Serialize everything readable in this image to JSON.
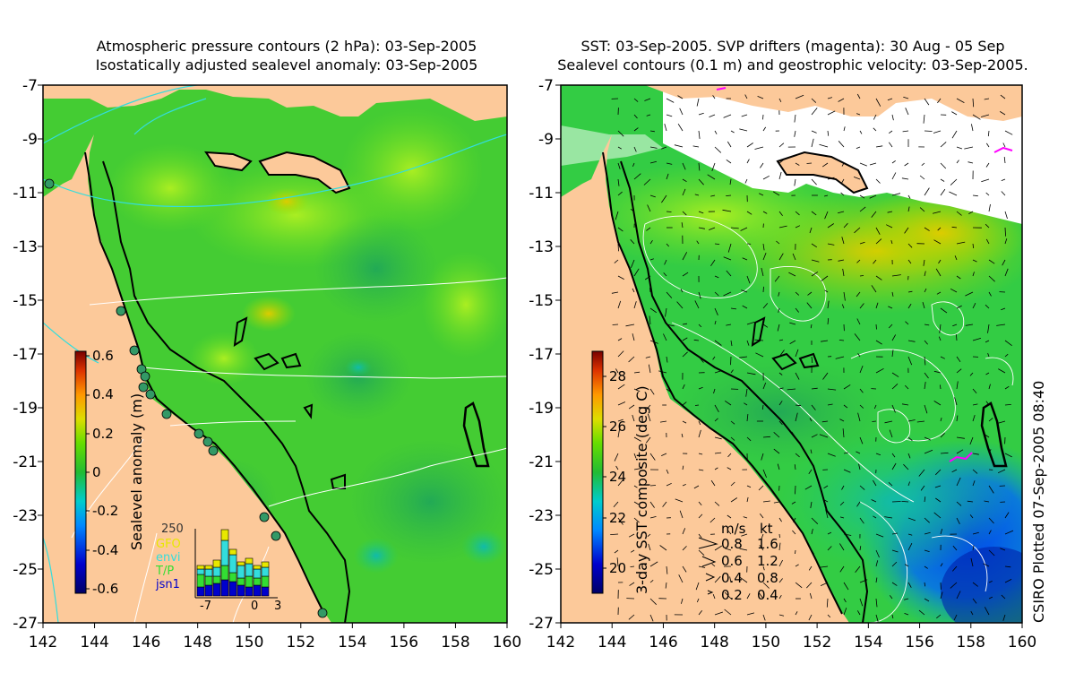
{
  "left_panel": {
    "title_line1": "Atmospheric pressure contours (2 hPa): 03-Sep-2005",
    "title_line2": "Isostatically adjusted sealevel anomaly: 03-Sep-2005",
    "colorbar_label": "Sealevel anomaly (m)",
    "colorbar_ticks": [
      "0.6",
      "0.4",
      "0.2",
      "0",
      "-0.2",
      "-0.4",
      "-0.6"
    ],
    "histogram": {
      "max_label": "250",
      "x_ticks": [
        "-7",
        "0",
        "3"
      ],
      "satellites": [
        {
          "name": "GFO",
          "color": "#e8e800"
        },
        {
          "name": "envi",
          "color": "#33dddd"
        },
        {
          "name": "T/P",
          "color": "#33dd33"
        },
        {
          "name": "jsn1",
          "color": "#0000cc"
        }
      ]
    }
  },
  "right_panel": {
    "title_line1": "SST: 03-Sep-2005. SVP drifters (magenta): 30 Aug - 05 Sep",
    "title_line2": "Sealevel contours (0.1 m) and geostrophic velocity: 03-Sep-2005.",
    "colorbar_label": "3-day SST composite (deg C)",
    "colorbar_ticks": [
      "28",
      "26",
      "24",
      "22",
      "20"
    ],
    "velocity_legend": {
      "header_ms": "m/s",
      "header_kt": "kt",
      "rows": [
        {
          "ms": "0.8",
          "kt": "1.6"
        },
        {
          "ms": "0.6",
          "kt": "1.2"
        },
        {
          "ms": "0.4",
          "kt": "0.8"
        },
        {
          "ms": "0.2",
          "kt": "0.4"
        }
      ]
    }
  },
  "axes": {
    "y_ticks": [
      "-7",
      "-9",
      "-11",
      "-13",
      "-15",
      "-17",
      "-19",
      "-21",
      "-23",
      "-25",
      "-27"
    ],
    "x_ticks": [
      "142",
      "144",
      "146",
      "148",
      "150",
      "152",
      "154",
      "156",
      "158",
      "160"
    ]
  },
  "credit": "CSIRO Plotted 07-Sep-2005 08:40",
  "colors": {
    "land": "#fcc99a",
    "sealevel_green": "#3ccf2e",
    "sst_green": "#2ecc3a",
    "contour_white": "#ffffff",
    "contour_cyan": "#33cccc",
    "drifter_magenta": "#ff00ff"
  }
}
